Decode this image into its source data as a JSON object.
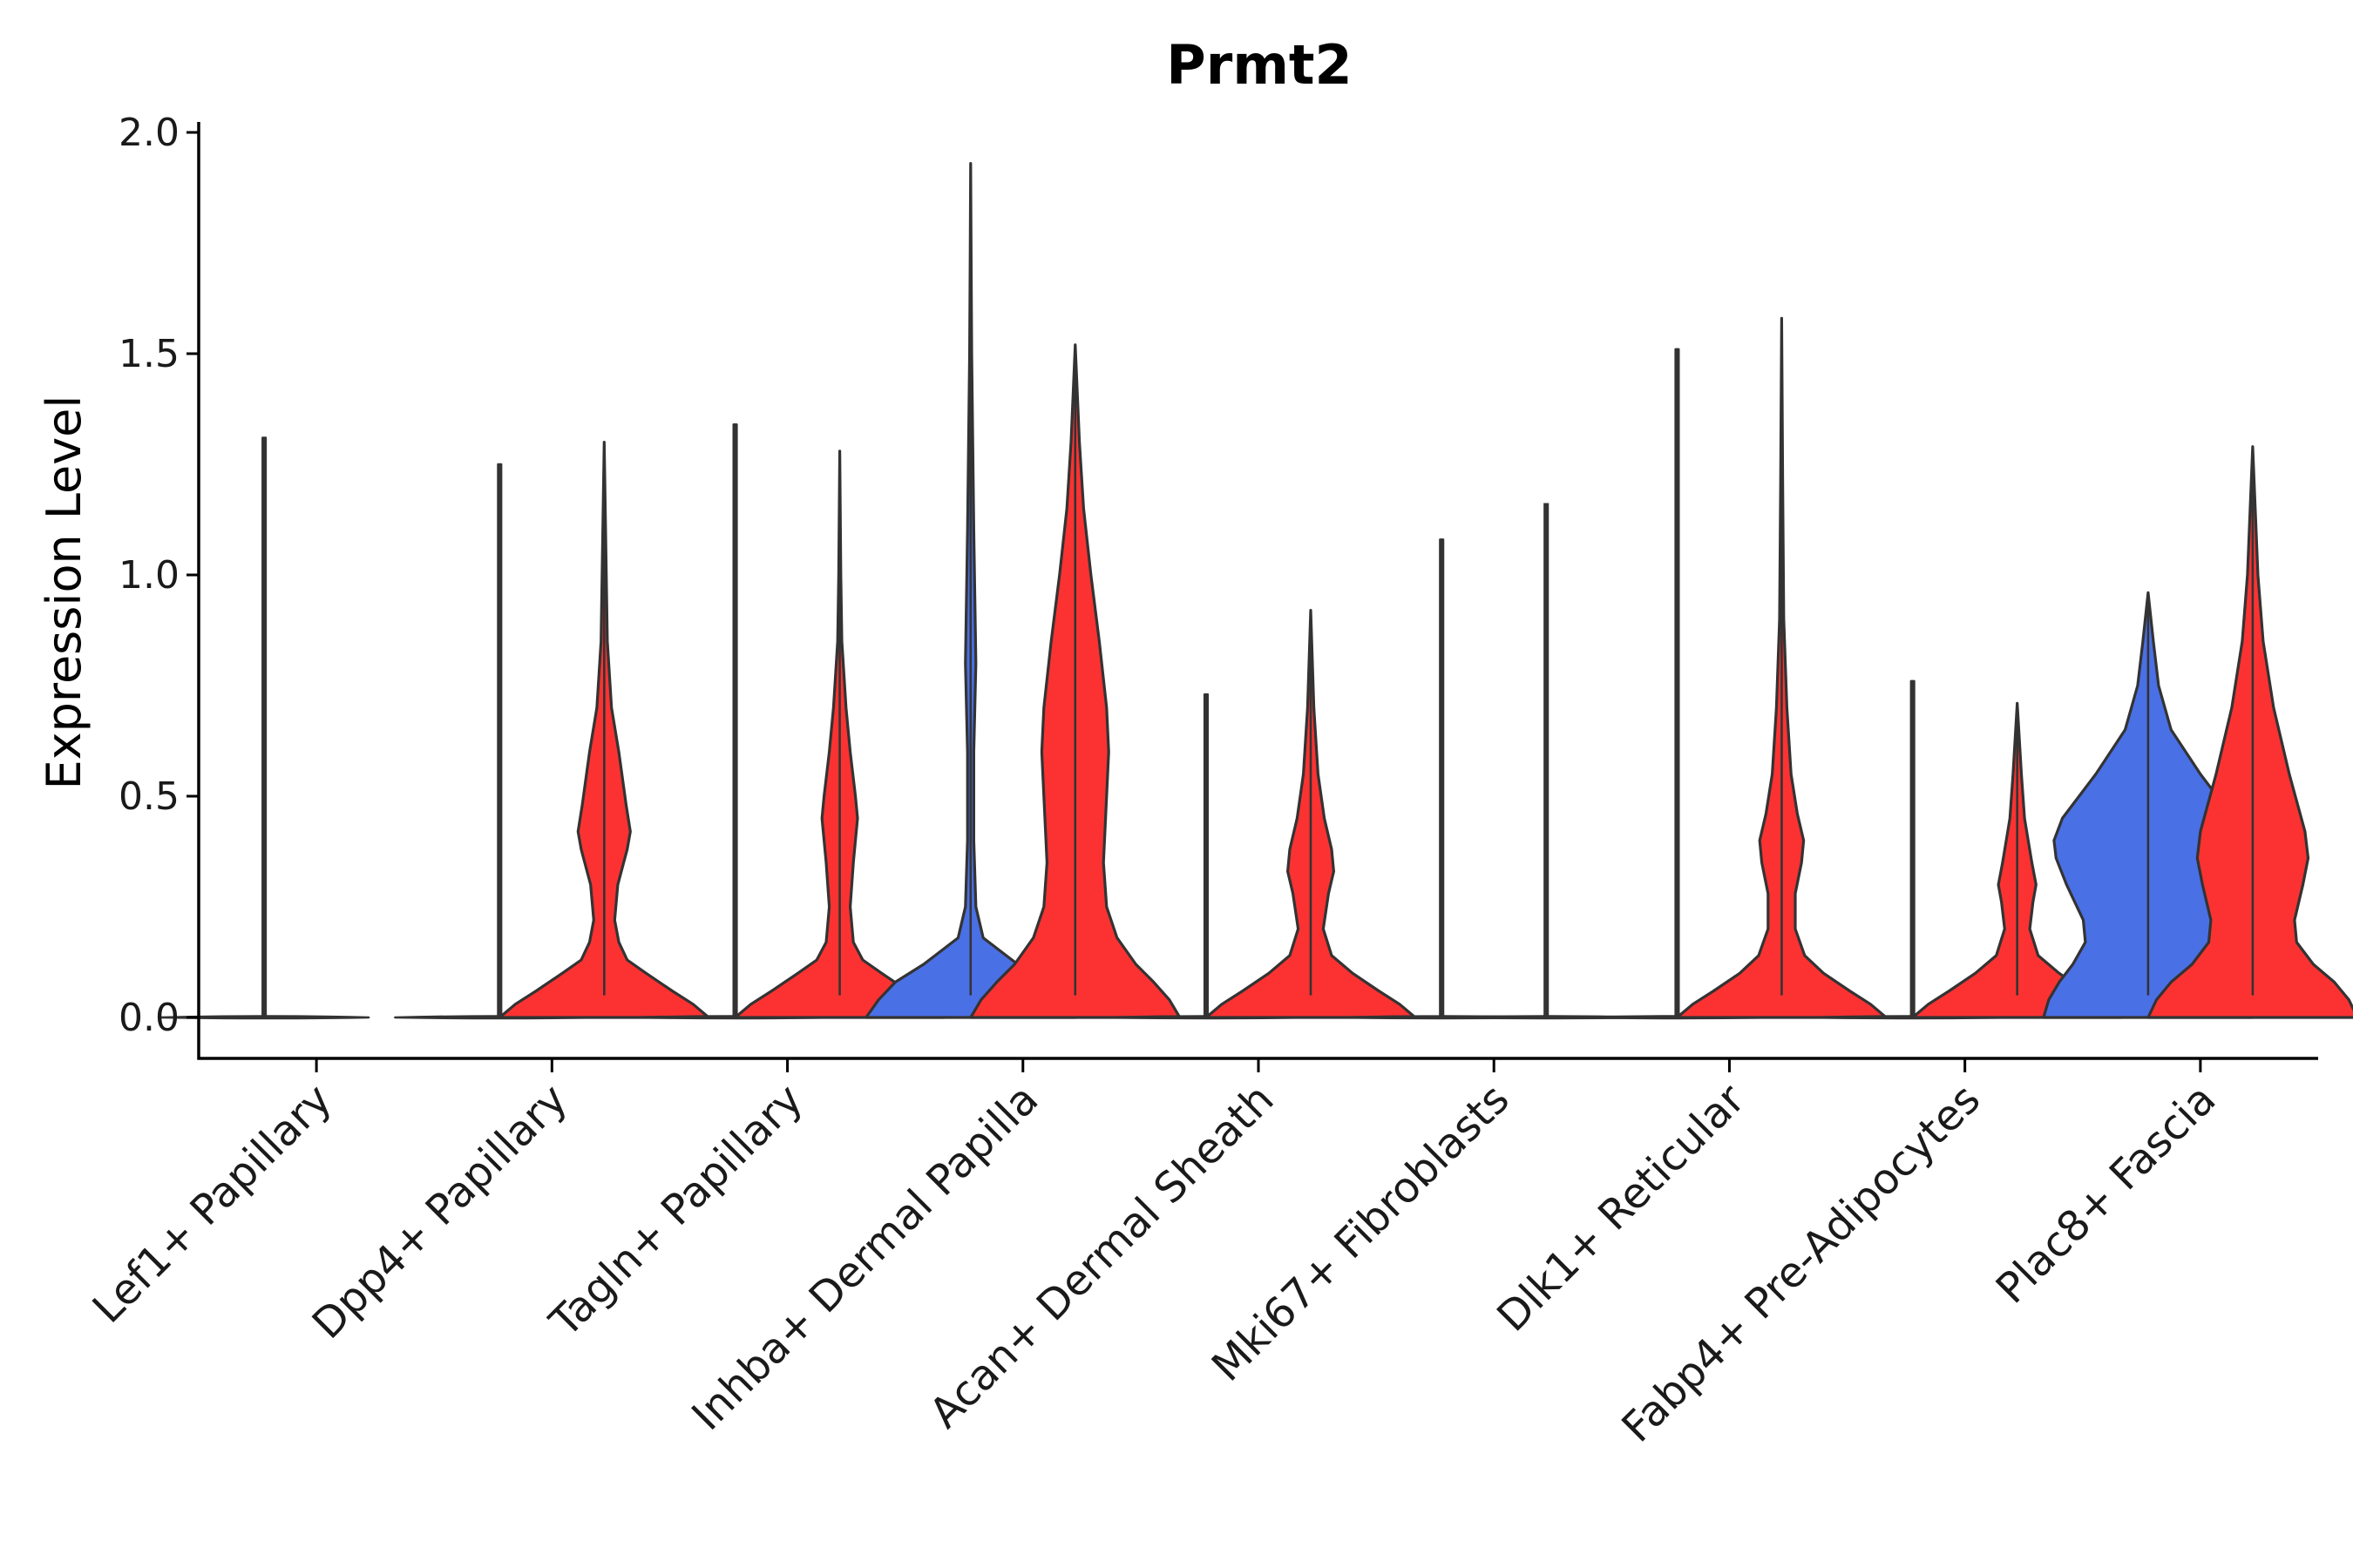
{
  "chart_data": {
    "type": "violin",
    "title": "Prmt2",
    "xlabel": "",
    "ylabel": "Expression Level",
    "ylim": [
      -0.1,
      2.05
    ],
    "yticks": [
      0.0,
      0.5,
      1.0,
      1.5,
      2.0
    ],
    "ytick_labels": [
      "0.0",
      "0.5",
      "1.0",
      "1.5",
      "2.0"
    ],
    "grid": false,
    "legend": "none",
    "colors": {
      "group1": "#4a70e6",
      "group2": "#fc3232",
      "outline": "#333333"
    },
    "categories": [
      "Lef1+ Papillary",
      "Dpp4+ Papillary",
      "Tagln+ Papillary",
      "Inhba+ Dermal Papilla",
      "Acan+ Dermal Sheath",
      "Mki67+ Fibroblasts",
      "Dlk1+ Reticular",
      "Fabp4+ Pre-Adipocytes",
      "Plac8+ Fascia"
    ],
    "series": [
      {
        "name": "group1",
        "violins": [
          {
            "max": 1.31,
            "profile": []
          },
          {
            "max": 1.25,
            "profile": []
          },
          {
            "max": 1.34,
            "profile": []
          },
          {
            "max": 1.93,
            "profile": [
              [
                0,
                1.0
              ],
              [
                0.04,
                0.88
              ],
              [
                0.08,
                0.72
              ],
              [
                0.12,
                0.45
              ],
              [
                0.18,
                0.12
              ],
              [
                0.25,
                0.05
              ],
              [
                0.4,
                0.03
              ],
              [
                0.6,
                0.03
              ],
              [
                0.8,
                0.05
              ],
              [
                0.95,
                0.04
              ],
              [
                1.1,
                0.03
              ],
              [
                1.3,
                0.02
              ],
              [
                1.5,
                0.01
              ],
              [
                1.7,
                0.005
              ],
              [
                1.93,
                0
              ]
            ]
          },
          {
            "max": 0.73,
            "profile": []
          },
          {
            "max": 1.08,
            "profile": []
          },
          {
            "max": 1.51,
            "profile": []
          },
          {
            "max": 0.76,
            "profile": []
          },
          {
            "max": 0.96,
            "profile": [
              [
                0,
                1.0
              ],
              [
                0.04,
                0.95
              ],
              [
                0.08,
                0.85
              ],
              [
                0.12,
                0.72
              ],
              [
                0.17,
                0.6
              ],
              [
                0.22,
                0.62
              ],
              [
                0.3,
                0.78
              ],
              [
                0.36,
                0.88
              ],
              [
                0.4,
                0.9
              ],
              [
                0.45,
                0.82
              ],
              [
                0.55,
                0.5
              ],
              [
                0.65,
                0.22
              ],
              [
                0.75,
                0.1
              ],
              [
                0.85,
                0.05
              ],
              [
                0.96,
                0
              ]
            ]
          }
        ]
      },
      {
        "name": "group2",
        "violins": [
          null,
          {
            "max": 1.3,
            "profile": [
              [
                0,
                1.0
              ],
              [
                0.03,
                0.85
              ],
              [
                0.06,
                0.65
              ],
              [
                0.1,
                0.4
              ],
              [
                0.13,
                0.22
              ],
              [
                0.17,
                0.14
              ],
              [
                0.22,
                0.1
              ],
              [
                0.3,
                0.13
              ],
              [
                0.38,
                0.22
              ],
              [
                0.42,
                0.25
              ],
              [
                0.48,
                0.21
              ],
              [
                0.6,
                0.14
              ],
              [
                0.7,
                0.07
              ],
              [
                0.85,
                0.03
              ],
              [
                1.0,
                0.02
              ],
              [
                1.3,
                0
              ]
            ]
          },
          {
            "max": 1.28,
            "profile": [
              [
                0,
                1.0
              ],
              [
                0.03,
                0.85
              ],
              [
                0.06,
                0.65
              ],
              [
                0.1,
                0.4
              ],
              [
                0.13,
                0.22
              ],
              [
                0.17,
                0.13
              ],
              [
                0.25,
                0.1
              ],
              [
                0.35,
                0.13
              ],
              [
                0.45,
                0.17
              ],
              [
                0.5,
                0.15
              ],
              [
                0.6,
                0.1
              ],
              [
                0.7,
                0.06
              ],
              [
                0.85,
                0.02
              ],
              [
                1.0,
                0.01
              ],
              [
                1.28,
                0
              ]
            ]
          },
          {
            "max": 1.52,
            "profile": [
              [
                0,
                1.0
              ],
              [
                0.04,
                0.9
              ],
              [
                0.08,
                0.75
              ],
              [
                0.12,
                0.58
              ],
              [
                0.18,
                0.4
              ],
              [
                0.25,
                0.3
              ],
              [
                0.35,
                0.27
              ],
              [
                0.5,
                0.3
              ],
              [
                0.6,
                0.32
              ],
              [
                0.7,
                0.3
              ],
              [
                0.85,
                0.23
              ],
              [
                1.0,
                0.15
              ],
              [
                1.15,
                0.08
              ],
              [
                1.3,
                0.04
              ],
              [
                1.52,
                0
              ]
            ]
          },
          {
            "max": 0.92,
            "profile": [
              [
                0,
                1.0
              ],
              [
                0.03,
                0.85
              ],
              [
                0.06,
                0.65
              ],
              [
                0.1,
                0.4
              ],
              [
                0.14,
                0.2
              ],
              [
                0.2,
                0.12
              ],
              [
                0.28,
                0.17
              ],
              [
                0.33,
                0.22
              ],
              [
                0.38,
                0.2
              ],
              [
                0.45,
                0.13
              ],
              [
                0.55,
                0.07
              ],
              [
                0.7,
                0.03
              ],
              [
                0.92,
                0
              ]
            ]
          },
          null,
          {
            "max": 1.58,
            "profile": [
              [
                0,
                1.0
              ],
              [
                0.03,
                0.85
              ],
              [
                0.06,
                0.65
              ],
              [
                0.1,
                0.4
              ],
              [
                0.14,
                0.22
              ],
              [
                0.2,
                0.13
              ],
              [
                0.28,
                0.13
              ],
              [
                0.35,
                0.19
              ],
              [
                0.4,
                0.21
              ],
              [
                0.46,
                0.15
              ],
              [
                0.55,
                0.09
              ],
              [
                0.7,
                0.05
              ],
              [
                0.9,
                0.02
              ],
              [
                1.2,
                0.01
              ],
              [
                1.58,
                0
              ]
            ]
          },
          {
            "max": 0.71,
            "profile": [
              [
                0,
                1.0
              ],
              [
                0.03,
                0.85
              ],
              [
                0.06,
                0.65
              ],
              [
                0.1,
                0.4
              ],
              [
                0.14,
                0.2
              ],
              [
                0.2,
                0.12
              ],
              [
                0.26,
                0.15
              ],
              [
                0.3,
                0.18
              ],
              [
                0.35,
                0.14
              ],
              [
                0.45,
                0.07
              ],
              [
                0.55,
                0.04
              ],
              [
                0.71,
                0
              ]
            ]
          },
          {
            "max": 1.29,
            "profile": [
              [
                0,
                1.0
              ],
              [
                0.04,
                0.92
              ],
              [
                0.08,
                0.78
              ],
              [
                0.12,
                0.58
              ],
              [
                0.17,
                0.42
              ],
              [
                0.22,
                0.4
              ],
              [
                0.3,
                0.48
              ],
              [
                0.36,
                0.53
              ],
              [
                0.42,
                0.5
              ],
              [
                0.55,
                0.35
              ],
              [
                0.7,
                0.2
              ],
              [
                0.85,
                0.1
              ],
              [
                1.0,
                0.05
              ],
              [
                1.29,
                0
              ]
            ]
          }
        ]
      }
    ]
  }
}
